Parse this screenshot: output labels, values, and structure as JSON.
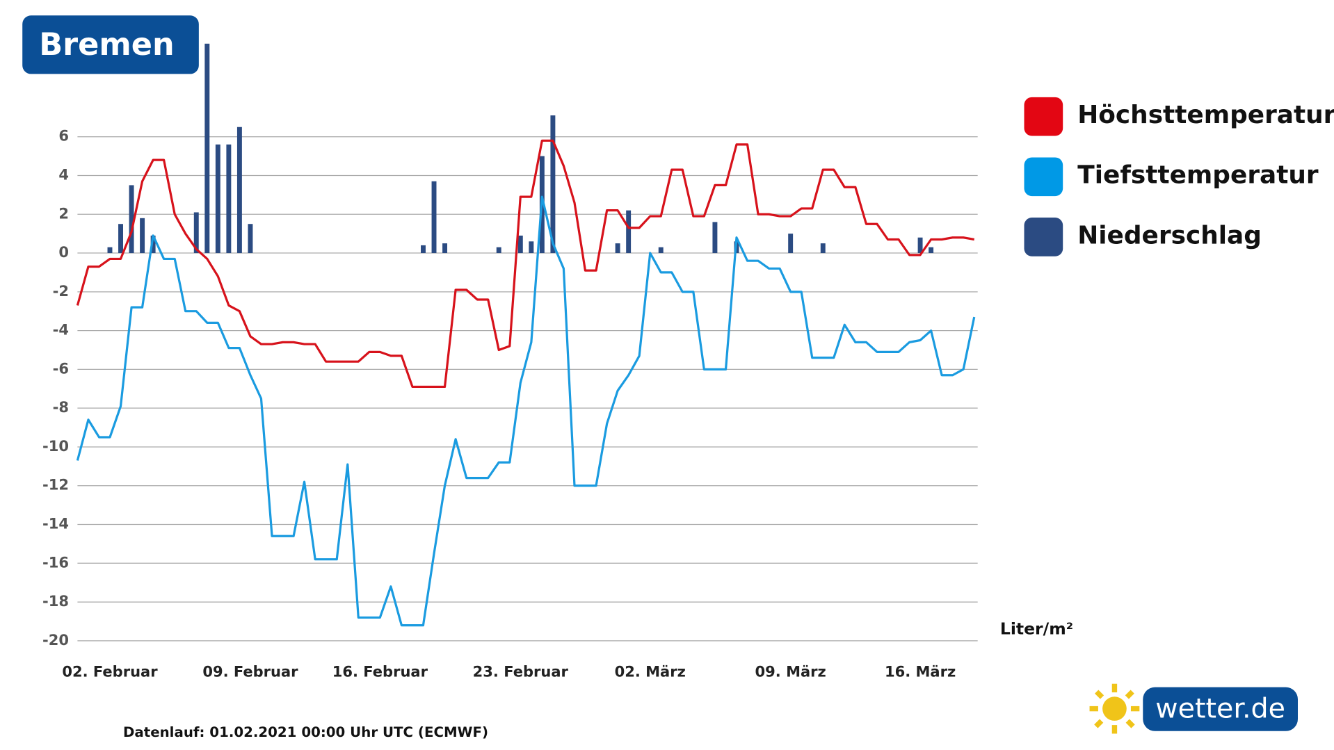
{
  "chart_data": {
    "type": "line-bar",
    "title": "Bremen",
    "categories": [
      null,
      null,
      null,
      "02. Februar",
      null,
      null,
      null,
      null,
      null,
      null,
      null,
      null,
      null,
      null,
      null,
      null,
      "09. Februar",
      null,
      null,
      null,
      null,
      null,
      null,
      null,
      null,
      null,
      null,
      null,
      "16. Februar",
      null,
      null,
      null,
      null,
      null,
      null,
      null,
      null,
      null,
      null,
      null,
      null,
      "23. Februar",
      null,
      null,
      null,
      null,
      null,
      null,
      null,
      null,
      null,
      null,
      null,
      "02. März",
      null,
      null,
      null,
      null,
      null,
      null,
      null,
      null,
      null,
      null,
      null,
      null,
      "09. März",
      null,
      null,
      null,
      null,
      null,
      null,
      null,
      null,
      null,
      null,
      null,
      "16. März",
      null,
      null,
      null,
      null,
      null
    ],
    "series": [
      {
        "name": "Höchsttemperatur",
        "color": "#d7121b",
        "kind": "line",
        "values": [
          -2.7,
          -0.7,
          -0.7,
          -0.3,
          -0.3,
          1.1,
          3.7,
          4.8,
          4.8,
          2.0,
          1.0,
          0.2,
          -0.3,
          -1.2,
          -2.7,
          -3.0,
          -4.3,
          -4.7,
          -4.7,
          -4.6,
          -4.6,
          -4.7,
          -4.7,
          -5.6,
          -5.6,
          -5.6,
          -5.6,
          -5.1,
          -5.1,
          -5.3,
          -5.3,
          -6.9,
          -6.9,
          -6.9,
          -6.9,
          -1.9,
          -1.9,
          -2.4,
          -2.4,
          -5.0,
          -4.8,
          2.9,
          2.9,
          5.8,
          5.8,
          4.5,
          2.6,
          -0.9,
          -0.9,
          2.2,
          2.2,
          1.3,
          1.3,
          1.9,
          1.9,
          4.3,
          4.3,
          1.9,
          1.9,
          3.5,
          3.5,
          5.6,
          5.6,
          2.0,
          2.0,
          1.9,
          1.9,
          2.3,
          2.3,
          4.3,
          4.3,
          3.4,
          3.4,
          1.5,
          1.5,
          0.7,
          0.7,
          -0.1,
          -0.1,
          0.7,
          0.7,
          0.8,
          0.8,
          0.7
        ]
      },
      {
        "name": "Tiefsttemperatur",
        "color": "#1a9be0",
        "kind": "line",
        "values": [
          -10.7,
          -8.6,
          -9.5,
          -9.5,
          -7.9,
          -2.8,
          -2.8,
          0.9,
          -0.3,
          -0.3,
          -3.0,
          -3.0,
          -3.6,
          -3.6,
          -4.9,
          -4.9,
          -6.3,
          -7.5,
          -14.6,
          -14.6,
          -14.6,
          -11.8,
          -15.8,
          -15.8,
          -15.8,
          -10.9,
          -18.8,
          -18.8,
          -18.8,
          -17.2,
          -19.2,
          -19.2,
          -19.2,
          -15.5,
          -12.0,
          -9.6,
          -11.6,
          -11.6,
          -11.6,
          -10.8,
          -10.8,
          -6.7,
          -4.6,
          2.9,
          0.5,
          -0.8,
          -12.0,
          -12.0,
          -12.0,
          -8.8,
          -7.1,
          -6.3,
          -5.3,
          0.0,
          -1.0,
          -1.0,
          -2.0,
          -2.0,
          -6.0,
          -6.0,
          -6.0,
          0.8,
          -0.4,
          -0.4,
          -0.8,
          -0.8,
          -2.0,
          -2.0,
          -5.4,
          -5.4,
          -5.4,
          -3.7,
          -4.6,
          -4.6,
          -5.1,
          -5.1,
          -5.1,
          -4.6,
          -4.5,
          -4.0,
          -6.3,
          -6.3,
          -6.0,
          -3.3
        ]
      },
      {
        "name": "Niederschlag",
        "color": "#2b4b82",
        "kind": "bar",
        "values": [
          0,
          0,
          0,
          0.3,
          1.5,
          3.5,
          1.8,
          0.9,
          0,
          0,
          0,
          2.1,
          10.8,
          5.6,
          5.6,
          6.5,
          1.5,
          0,
          0,
          0,
          0,
          0,
          0,
          0,
          0,
          0,
          0,
          0,
          0,
          0,
          0,
          0,
          0.4,
          3.7,
          0.5,
          0,
          0,
          0,
          0,
          0.3,
          0,
          0.9,
          0.6,
          5.0,
          7.1,
          0,
          0,
          0,
          0,
          0,
          0.5,
          2.2,
          0,
          0,
          0.3,
          0,
          0,
          0,
          0,
          1.6,
          0,
          0.6,
          0,
          0,
          0,
          0,
          1.0,
          0,
          0,
          0.5,
          0,
          0,
          0,
          0,
          0,
          0,
          0,
          0,
          0.8,
          0.3,
          0,
          0,
          0,
          0
        ]
      }
    ],
    "ylim": [
      -20,
      11
    ],
    "yticks": [
      -20,
      -18,
      -16,
      -14,
      -12,
      -10,
      -8,
      -6,
      -4,
      -2,
      0,
      2,
      4,
      6
    ],
    "grid": true,
    "legend": "right",
    "unit_label": "Liter/m²",
    "footnote": "Datenlauf: 01.02.2021 00:00 Uhr UTC (ECMWF)",
    "logo": "wetter.de"
  }
}
